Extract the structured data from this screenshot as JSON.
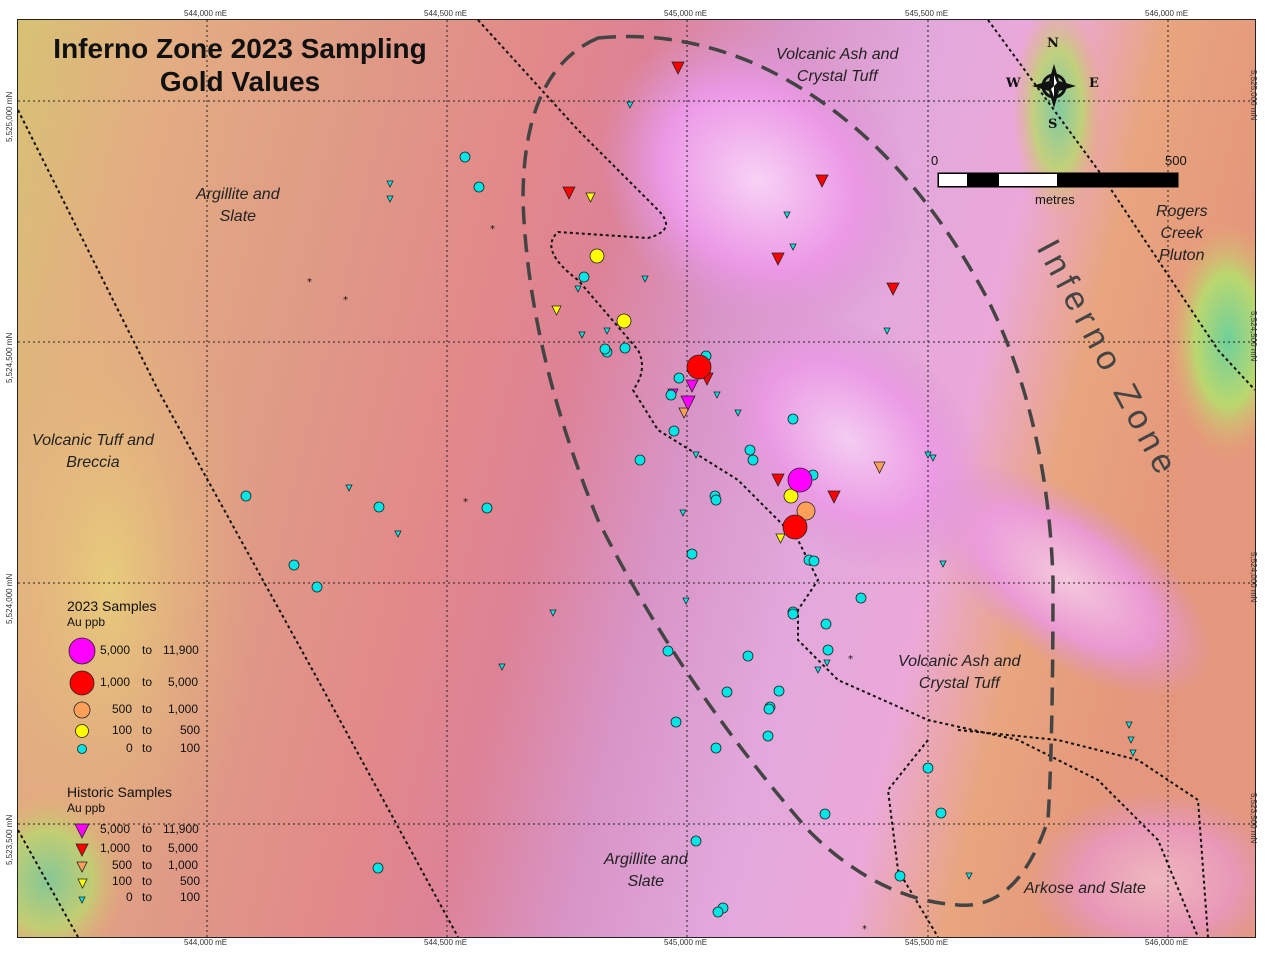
{
  "title": {
    "line1": "Inferno Zone 2023 Sampling",
    "line2": "Gold Values"
  },
  "grid": {
    "easting_labels": [
      "544,000 mE",
      "544,500 mE",
      "545,000 mE",
      "545,500 mE",
      "546,000 mE"
    ],
    "northing_labels": [
      "5,525,000 mN",
      "5,524,500 mN",
      "5,524,000 mN",
      "5,523,500 mN"
    ]
  },
  "geology_labels": {
    "argillite_slate_nw": "Argillite and\nSlate",
    "volcanic_ash_north": "Volcanic Ash and\nCrystal Tuff",
    "rogers_creek": "Rogers\nCreek\nPluton",
    "volcanic_tuff_breccia": "Volcanic Tuff and\nBreccia",
    "volcanic_ash_east": "Volcanic Ash and\nCrystal Tuff",
    "argillite_slate_south": "Argillite and\nSlate",
    "arkose_slate": "Arkose and Slate"
  },
  "zone_label": "Inferno Zone",
  "north_arrow": {
    "n": "N",
    "s": "S",
    "e": "E",
    "w": "W"
  },
  "scale_bar": {
    "start": "0",
    "end": "500",
    "unit": "metres"
  },
  "legend": {
    "samples_2023": {
      "title": "2023 Samples",
      "subtitle": "Au ppb",
      "classes": [
        {
          "from": "5,000",
          "to_word": "to",
          "to": "11,900",
          "color": "#ff00ff"
        },
        {
          "from": "1,000",
          "to_word": "to",
          "to": "5,000",
          "color": "#ff0000"
        },
        {
          "from": "500",
          "to_word": "to",
          "to": "1,000",
          "color": "#ffa05a"
        },
        {
          "from": "100",
          "to_word": "to",
          "to": "500",
          "color": "#ffff00"
        },
        {
          "from": "0",
          "to_word": "to",
          "to": "100",
          "color": "#00e5e5"
        }
      ]
    },
    "historic": {
      "title": "Historic Samples",
      "subtitle": "Au ppb",
      "classes": [
        {
          "from": "5,000",
          "to_word": "to",
          "to": "11,900",
          "color": "#ff00ff"
        },
        {
          "from": "1,000",
          "to_word": "to",
          "to": "5,000",
          "color": "#ff0000"
        },
        {
          "from": "500",
          "to_word": "to",
          "to": "1,000",
          "color": "#ffa05a"
        },
        {
          "from": "100",
          "to_word": "to",
          "to": "500",
          "color": "#ffff00"
        },
        {
          "from": "0",
          "to_word": "to",
          "to": "100",
          "color": "#00e5e5"
        }
      ]
    }
  }
}
